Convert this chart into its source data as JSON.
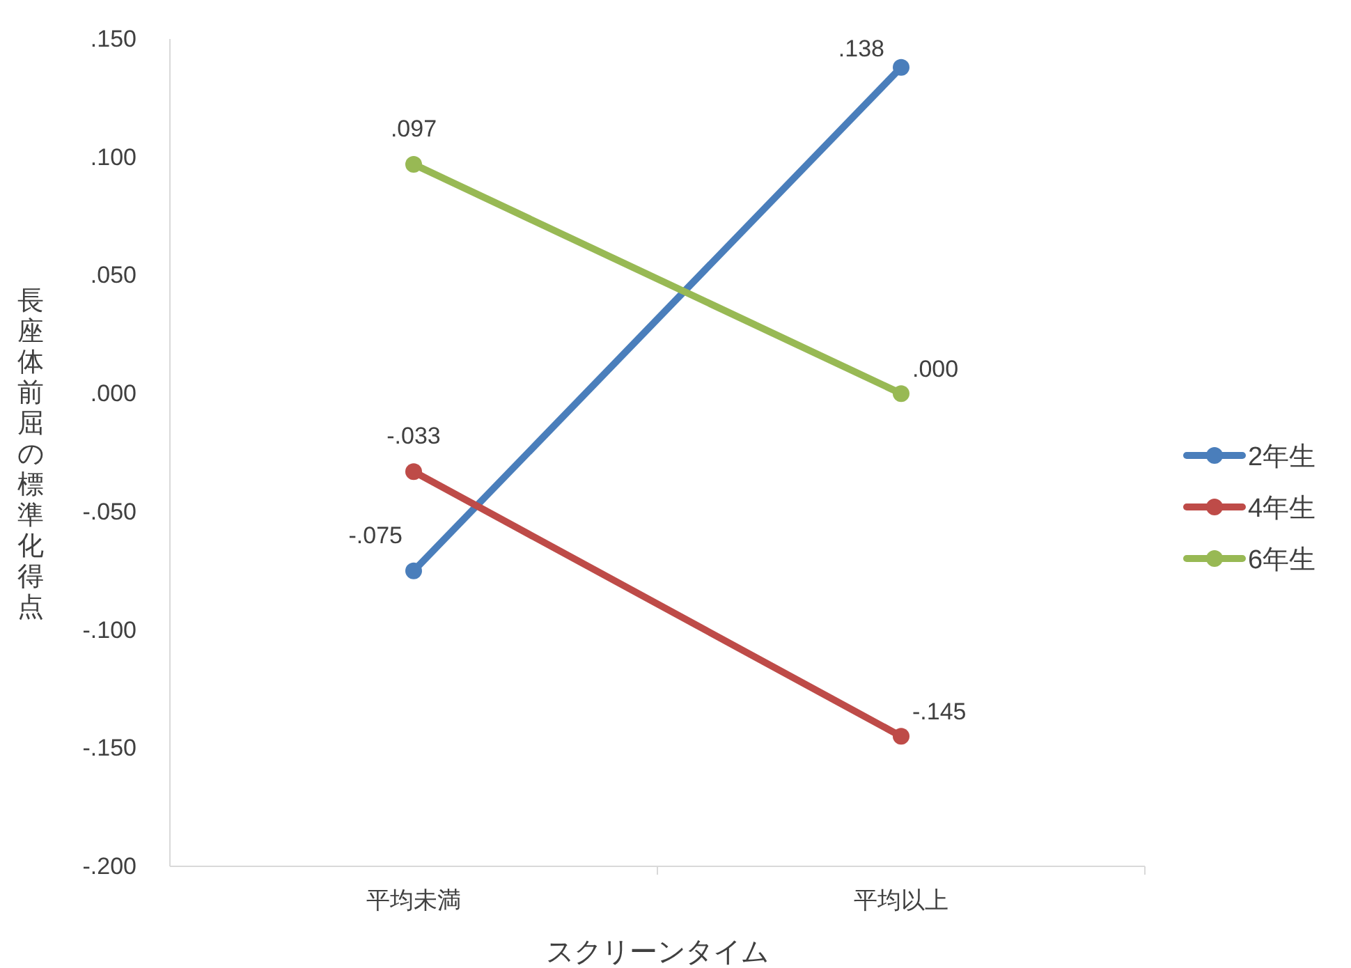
{
  "chart_data": {
    "type": "line",
    "xlabel": "スクリーンタイム",
    "ylabel": "長座体前屈の標準化得点",
    "categories": [
      "平均未満",
      "平均以上"
    ],
    "series": [
      {
        "name": "2年生",
        "color": "#4a7ebb",
        "values": [
          -0.075,
          0.138
        ],
        "value_labels": [
          "-.075",
          ".138"
        ]
      },
      {
        "name": "4年生",
        "color": "#be4b48",
        "values": [
          -0.033,
          -0.145
        ],
        "value_labels": [
          "-.033",
          "-.145"
        ]
      },
      {
        "name": "6年生",
        "color": "#98b954",
        "values": [
          0.097,
          0.0
        ],
        "value_labels": [
          ".097",
          ".000"
        ]
      }
    ],
    "ylim": [
      -0.2,
      0.15
    ],
    "yticks": [
      {
        "value": -0.2,
        "label": "-.200"
      },
      {
        "value": -0.15,
        "label": "-.150"
      },
      {
        "value": -0.1,
        "label": "-.100"
      },
      {
        "value": -0.05,
        "label": "-.050"
      },
      {
        "value": 0,
        "label": ".000"
      },
      {
        "value": 0.05,
        "label": ".050"
      },
      {
        "value": 0.1,
        "label": ".100"
      },
      {
        "value": 0.15,
        "label": ".150"
      }
    ],
    "legend": "right",
    "marker": "circle"
  }
}
